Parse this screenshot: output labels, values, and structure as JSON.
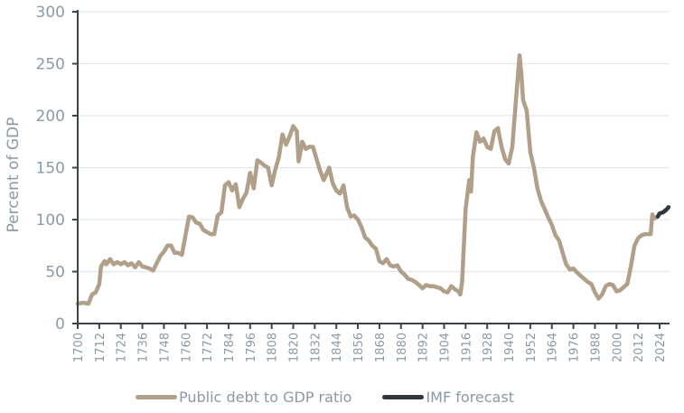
{
  "chart_data": {
    "type": "line",
    "title": "",
    "xlabel": "",
    "ylabel": "Percent of GDP",
    "xlim": [
      1700,
      2029
    ],
    "ylim": [
      0,
      300
    ],
    "grid": true,
    "legend_position": "bottom",
    "y_ticks": [
      0,
      50,
      100,
      150,
      200,
      250,
      300
    ],
    "x_ticks": [
      1700,
      1712,
      1724,
      1736,
      1748,
      1760,
      1772,
      1784,
      1796,
      1808,
      1820,
      1832,
      1844,
      1856,
      1868,
      1880,
      1892,
      1904,
      1916,
      1928,
      1940,
      1952,
      1964,
      1976,
      1988,
      2000,
      2012,
      2024
    ],
    "series": [
      {
        "name": "Public debt to GDP ratio",
        "color": "#b09f89",
        "x": [
          1700,
          1703,
          1706,
          1708,
          1710,
          1712,
          1713,
          1715,
          1716,
          1718,
          1720,
          1722,
          1724,
          1726,
          1728,
          1730,
          1732,
          1734,
          1736,
          1738,
          1740,
          1742,
          1744,
          1746,
          1748,
          1750,
          1752,
          1754,
          1756,
          1758,
          1760,
          1762,
          1764,
          1766,
          1768,
          1770,
          1772,
          1774,
          1776,
          1778,
          1780,
          1782,
          1784,
          1786,
          1788,
          1790,
          1792,
          1794,
          1796,
          1798,
          1800,
          1802,
          1804,
          1806,
          1808,
          1810,
          1812,
          1814,
          1816,
          1818,
          1820,
          1822,
          1823,
          1825,
          1827,
          1829,
          1831,
          1833,
          1835,
          1837,
          1840,
          1842,
          1844,
          1846,
          1848,
          1850,
          1852,
          1854,
          1856,
          1858,
          1860,
          1862,
          1864,
          1866,
          1868,
          1870,
          1872,
          1874,
          1876,
          1878,
          1880,
          1882,
          1884,
          1886,
          1888,
          1890,
          1892,
          1894,
          1896,
          1898,
          1900,
          1902,
          1904,
          1906,
          1908,
          1910,
          1912,
          1913,
          1914,
          1916,
          1918,
          1919,
          1920,
          1922,
          1924,
          1926,
          1928,
          1930,
          1932,
          1934,
          1936,
          1938,
          1940,
          1942,
          1944,
          1946,
          1947,
          1948,
          1950,
          1952,
          1954,
          1956,
          1958,
          1960,
          1962,
          1964,
          1966,
          1968,
          1970,
          1972,
          1974,
          1976,
          1978,
          1980,
          1982,
          1984,
          1986,
          1988,
          1990,
          1992,
          1994,
          1996,
          1998,
          2000,
          2002,
          2004,
          2006,
          2008,
          2010,
          2012,
          2014,
          2016,
          2018,
          2019,
          2020,
          2021,
          2022,
          2023
        ],
        "values": [
          19,
          20,
          19,
          28,
          30,
          38,
          55,
          60,
          57,
          62,
          57,
          59,
          57,
          59,
          56,
          58,
          54,
          59,
          55,
          54,
          53,
          51,
          58,
          65,
          69,
          75,
          75,
          68,
          68,
          66,
          85,
          103,
          102,
          97,
          96,
          90,
          88,
          86,
          86,
          104,
          107,
          133,
          136,
          128,
          134,
          112,
          120,
          126,
          145,
          130,
          157,
          155,
          152,
          150,
          133,
          148,
          160,
          182,
          172,
          180,
          190,
          185,
          156,
          175,
          168,
          170,
          170,
          158,
          147,
          138,
          150,
          135,
          128,
          125,
          133,
          112,
          103,
          104,
          100,
          93,
          83,
          80,
          75,
          72,
          60,
          58,
          62,
          56,
          55,
          56,
          50,
          47,
          43,
          42,
          40,
          37,
          34,
          37,
          36,
          36,
          35,
          34,
          31,
          30,
          36,
          33,
          31,
          28,
          40,
          110,
          138,
          127,
          160,
          184,
          175,
          178,
          170,
          168,
          185,
          188,
          170,
          158,
          154,
          170,
          215,
          258,
          240,
          215,
          205,
          165,
          150,
          130,
          118,
          110,
          102,
          95,
          85,
          80,
          68,
          57,
          52,
          53,
          49,
          46,
          43,
          40,
          38,
          30,
          24,
          28,
          36,
          38,
          37,
          31,
          32,
          35,
          38,
          55,
          75,
          82,
          85,
          86,
          86,
          86,
          105,
          101,
          102,
          103
        ]
      },
      {
        "name": "IMF forecast",
        "color": "#2f383e",
        "x": [
          2023,
          2024,
          2026,
          2028,
          2029
        ],
        "values": [
          103,
          106,
          107,
          110,
          112
        ]
      }
    ]
  }
}
